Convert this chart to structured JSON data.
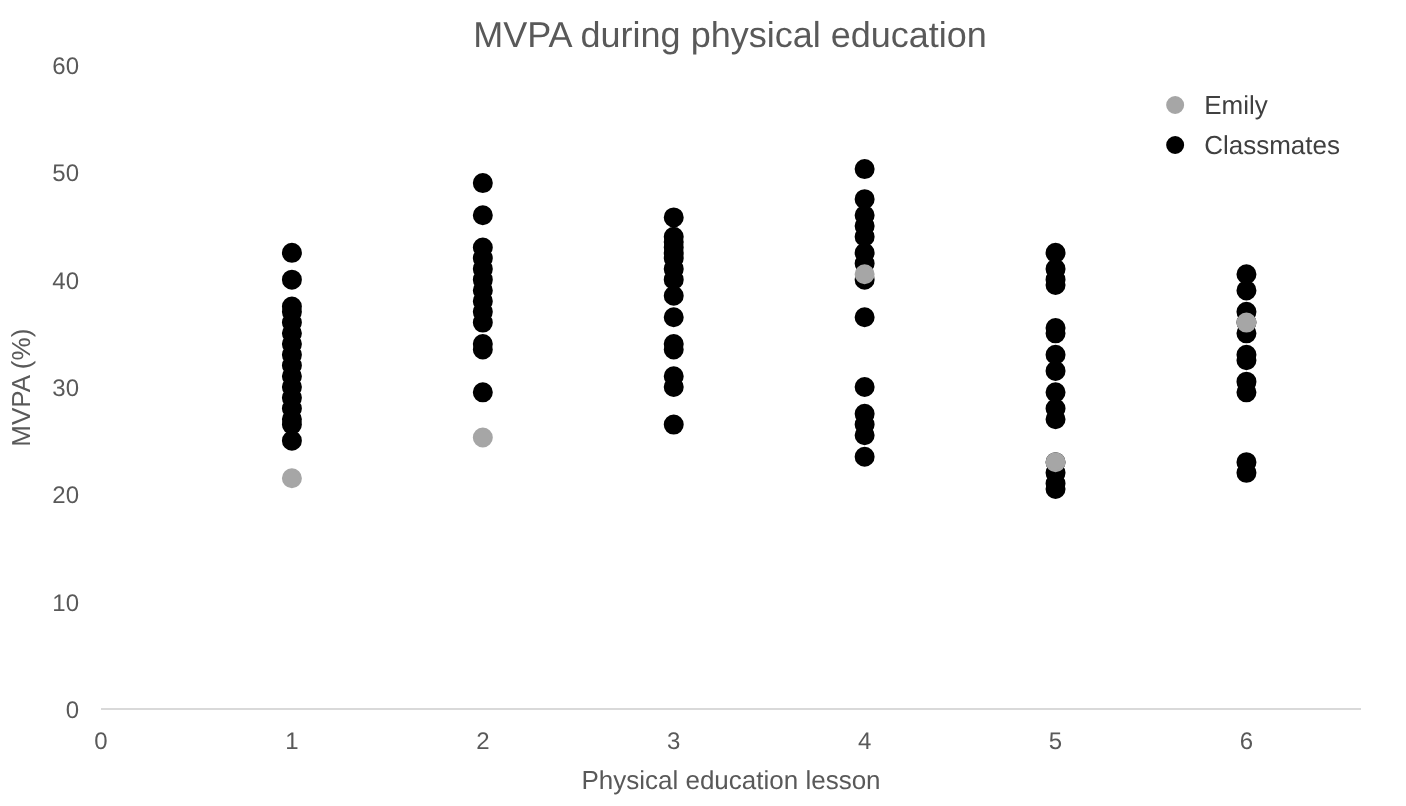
{
  "chart_data": {
    "type": "scatter",
    "title": "MVPA during physical education",
    "xlabel": "Physical education lesson",
    "ylabel": "MVPA (%)",
    "xlim": [
      0,
      6.6
    ],
    "xticks": [
      0,
      1,
      2,
      3,
      4,
      5,
      6
    ],
    "ylim": [
      0,
      60
    ],
    "yticks": [
      0,
      10,
      20,
      30,
      40,
      50,
      60
    ],
    "grid": false,
    "legend": "top right",
    "marker": "circle",
    "series": [
      {
        "name": "Emily",
        "color": "#a6a6a6",
        "x": [
          1,
          2,
          4,
          5,
          6
        ],
        "values": [
          21.5,
          25.3,
          40.5,
          23,
          36
        ]
      },
      {
        "name": "Classmates",
        "color": "#000000",
        "x": [
          1,
          1,
          1,
          1,
          1,
          1,
          1,
          1,
          1,
          1,
          1,
          1,
          1,
          1,
          1,
          1,
          2,
          2,
          2,
          2,
          2,
          2,
          2,
          2,
          2,
          2,
          2,
          2,
          2,
          3,
          3,
          3,
          3,
          3,
          3,
          3,
          3,
          3,
          3,
          3,
          3,
          3,
          3,
          3,
          4,
          4,
          4,
          4,
          4,
          4,
          4,
          4,
          4,
          4,
          4,
          4,
          4,
          4,
          5,
          5,
          5,
          5,
          5,
          5,
          5,
          5,
          5,
          5,
          5,
          5,
          5,
          5,
          5,
          6,
          6,
          6,
          6,
          6,
          6,
          6,
          6,
          6,
          6,
          6
        ],
        "values": [
          42.5,
          40,
          37.5,
          37,
          36,
          35,
          34,
          33,
          32,
          31,
          30,
          29,
          28,
          27,
          26.5,
          25,
          49,
          46,
          43,
          42,
          41,
          40,
          39,
          38,
          37,
          36,
          34,
          33.5,
          29.5,
          45.8,
          44,
          43.5,
          43,
          42.5,
          42,
          41,
          40,
          38.5,
          36.5,
          34,
          33.5,
          31,
          30,
          26.5,
          50.3,
          47.5,
          46,
          45,
          44,
          42.5,
          41.5,
          40,
          36.5,
          30,
          27.5,
          26.5,
          25.5,
          23.5,
          42.5,
          41,
          40,
          39.5,
          35.5,
          35,
          33,
          31.5,
          29.5,
          28,
          27,
          23,
          22,
          21,
          20.5,
          40.5,
          39,
          37,
          36,
          35,
          33,
          32.5,
          30.5,
          29.5,
          23,
          22
        ]
      }
    ]
  }
}
